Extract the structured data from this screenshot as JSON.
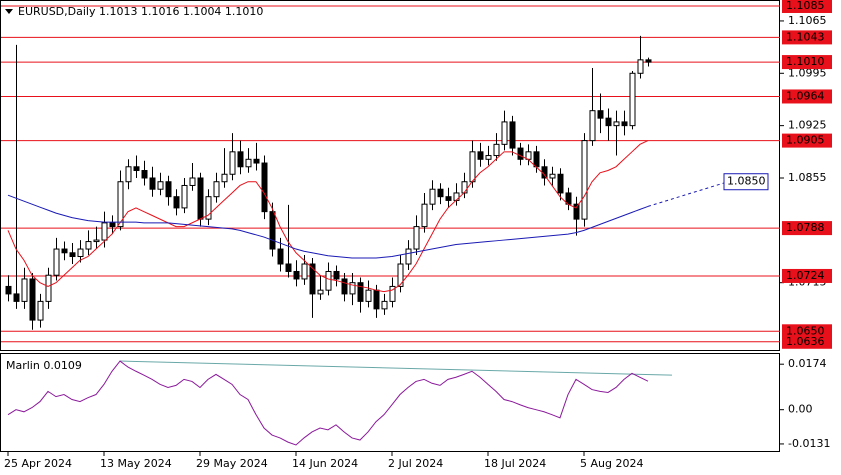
{
  "chart_data": {
    "type": "candlestick",
    "title": "EURUSD,Daily  1.1013 1.1016 1.1004 1.1010",
    "categories": [
      "25 Apr 2024",
      null,
      null,
      null,
      null,
      null,
      null,
      null,
      null,
      null,
      null,
      null,
      "13 May 2024",
      null,
      null,
      null,
      null,
      null,
      null,
      null,
      null,
      null,
      null,
      null,
      "29 May 2024",
      null,
      null,
      null,
      null,
      null,
      null,
      null,
      null,
      null,
      null,
      null,
      "14 Jun 2024",
      null,
      null,
      null,
      null,
      null,
      null,
      null,
      null,
      null,
      null,
      null,
      "2 Jul 2024",
      null,
      null,
      null,
      null,
      null,
      null,
      null,
      null,
      null,
      null,
      null,
      "18 Jul 2024",
      null,
      null,
      null,
      null,
      null,
      null,
      null,
      null,
      null,
      null,
      null,
      "5 Aug 2024",
      null,
      null,
      null,
      null,
      null,
      null,
      null,
      null
    ],
    "candles": [
      [
        1.071,
        1.0725,
        1.069,
        1.07
      ],
      [
        1.07,
        1.1033,
        1.068,
        1.069
      ],
      [
        1.069,
        1.0735,
        1.068,
        1.072
      ],
      [
        1.072,
        1.0728,
        1.0652,
        1.0665
      ],
      [
        1.0665,
        1.07,
        1.0655,
        1.069
      ],
      [
        1.069,
        1.0735,
        1.068,
        1.0725
      ],
      [
        1.0725,
        1.0775,
        1.0718,
        1.076
      ],
      [
        1.076,
        1.077,
        1.0745,
        1.0755
      ],
      [
        1.0755,
        1.0768,
        1.074,
        1.075
      ],
      [
        1.075,
        1.0772,
        1.0742,
        1.076
      ],
      [
        1.076,
        1.0785,
        1.0752,
        1.077
      ],
      [
        1.077,
        1.079,
        1.076,
        1.0772
      ],
      [
        1.0772,
        1.081,
        1.0762,
        1.0795
      ],
      [
        1.0795,
        1.0805,
        1.078,
        1.079
      ],
      [
        1.079,
        1.0865,
        1.0785,
        1.085
      ],
      [
        1.085,
        1.088,
        1.084,
        1.087
      ],
      [
        1.087,
        1.0885,
        1.0855,
        1.0865
      ],
      [
        1.0865,
        1.0878,
        1.0845,
        1.0855
      ],
      [
        1.0855,
        1.087,
        1.083,
        1.084
      ],
      [
        1.084,
        1.0862,
        1.0832,
        1.085
      ],
      [
        1.085,
        1.0858,
        1.0818,
        1.083
      ],
      [
        1.083,
        1.084,
        1.0805,
        1.0815
      ],
      [
        1.0815,
        1.0855,
        1.0808,
        1.0845
      ],
      [
        1.0845,
        1.0875,
        1.0838,
        1.0855
      ],
      [
        1.0855,
        1.0862,
        1.079,
        1.08
      ],
      [
        1.08,
        1.084,
        1.0792,
        1.083
      ],
      [
        1.083,
        1.0862,
        1.0822,
        1.085
      ],
      [
        1.085,
        1.0895,
        1.0842,
        1.086
      ],
      [
        1.086,
        1.0915,
        1.0852,
        1.089
      ],
      [
        1.089,
        1.0905,
        1.086,
        1.087
      ],
      [
        1.087,
        1.0895,
        1.0862,
        1.088
      ],
      [
        1.088,
        1.0902,
        1.0865,
        1.0875
      ],
      [
        1.0875,
        1.0885,
        1.08,
        1.081
      ],
      [
        1.081,
        1.0822,
        1.075,
        1.076
      ],
      [
        1.076,
        1.0775,
        1.073,
        1.074
      ],
      [
        1.074,
        1.0819,
        1.0722,
        1.073
      ],
      [
        1.073,
        1.0745,
        1.071,
        1.072
      ],
      [
        1.072,
        1.0752,
        1.0712,
        1.074
      ],
      [
        1.074,
        1.0748,
        1.0668,
        1.07
      ],
      [
        1.07,
        1.0725,
        1.0692,
        1.0705
      ],
      [
        1.0705,
        1.0742,
        1.0698,
        1.073
      ],
      [
        1.073,
        1.0738,
        1.071,
        1.072
      ],
      [
        1.072,
        1.0728,
        1.069,
        1.07
      ],
      [
        1.07,
        1.0728,
        1.0685,
        1.0715
      ],
      [
        1.0715,
        1.0722,
        1.0675,
        1.069
      ],
      [
        1.069,
        1.0718,
        1.0682,
        1.0705
      ],
      [
        1.0705,
        1.0712,
        1.0668,
        1.068
      ],
      [
        1.068,
        1.07,
        1.0672,
        1.069
      ],
      [
        1.069,
        1.0722,
        1.0682,
        1.071
      ],
      [
        1.071,
        1.0752,
        1.0702,
        1.074
      ],
      [
        1.074,
        1.0772,
        1.0732,
        1.076
      ],
      [
        1.076,
        1.0805,
        1.0752,
        1.079
      ],
      [
        1.079,
        1.0835,
        1.0782,
        1.082
      ],
      [
        1.082,
        1.0852,
        1.0812,
        1.084
      ],
      [
        1.084,
        1.0848,
        1.082,
        1.083
      ],
      [
        1.083,
        1.0842,
        1.0815,
        1.0825
      ],
      [
        1.0825,
        1.0848,
        1.0818,
        1.0835
      ],
      [
        1.0835,
        1.0862,
        1.0828,
        1.085
      ],
      [
        1.085,
        1.0905,
        1.0842,
        1.089
      ],
      [
        1.089,
        1.0902,
        1.087,
        1.088
      ],
      [
        1.088,
        1.0898,
        1.0872,
        1.0885
      ],
      [
        1.0885,
        1.0915,
        1.0878,
        1.09
      ],
      [
        1.09,
        1.0945,
        1.0892,
        1.093
      ],
      [
        1.093,
        1.0938,
        1.0885,
        1.0895
      ],
      [
        1.0895,
        1.0902,
        1.0872,
        1.088
      ],
      [
        1.088,
        1.09,
        1.0872,
        1.089
      ],
      [
        1.089,
        1.0898,
        1.0862,
        1.087
      ],
      [
        1.087,
        1.088,
        1.0845,
        1.0855
      ],
      [
        1.0855,
        1.087,
        1.0845,
        1.086
      ],
      [
        1.086,
        1.0868,
        1.0825,
        1.0835
      ],
      [
        1.0835,
        1.0842,
        1.0812,
        1.082
      ],
      [
        1.082,
        1.083,
        1.0778,
        1.08
      ],
      [
        1.08,
        1.0915,
        1.079,
        1.0905
      ],
      [
        1.0905,
        1.1002,
        1.0898,
        1.0945
      ],
      [
        1.0945,
        1.0968,
        1.0915,
        1.0935
      ],
      [
        1.0935,
        1.0948,
        1.0905,
        1.0925
      ],
      [
        1.0925,
        1.0945,
        1.0885,
        1.093
      ],
      [
        1.093,
        1.0945,
        1.0912,
        1.0925
      ],
      [
        1.0925,
        1.0998,
        1.092,
        1.0995
      ],
      [
        1.0995,
        1.1045,
        1.0988,
        1.1013
      ],
      [
        1.1013,
        1.1016,
        1.1004,
        1.101
      ]
    ],
    "up_color": "#ffffff",
    "down_color": "#000000",
    "series": [
      {
        "name": null,
        "color": "#e8101a",
        "values": [
          1.0785,
          1.076,
          1.0745,
          1.0725,
          1.0715,
          1.071,
          1.0715,
          1.0725,
          1.0735,
          1.0745,
          1.075,
          1.076,
          1.077,
          1.078,
          1.0795,
          1.081,
          1.0815,
          1.081,
          1.0805,
          1.08,
          1.0795,
          1.079,
          1.079,
          1.0795,
          1.08,
          1.0805,
          1.0815,
          1.0825,
          1.0835,
          1.0845,
          1.085,
          1.085,
          1.0835,
          1.0815,
          1.079,
          1.077,
          1.0755,
          1.0745,
          1.0735,
          1.0725,
          1.072,
          1.0718,
          1.0715,
          1.0712,
          1.071,
          1.0708,
          1.0705,
          1.0703,
          1.0705,
          1.0712,
          1.0725,
          1.074,
          1.076,
          1.078,
          1.08,
          1.0815,
          1.0825,
          1.0835,
          1.085,
          1.0862,
          1.087,
          1.088,
          1.089,
          1.089,
          1.0885,
          1.088,
          1.087,
          1.086,
          1.0845,
          1.083,
          1.082,
          1.0815,
          1.083,
          1.085,
          1.0862,
          1.0865,
          1.087,
          1.088,
          1.089,
          1.09,
          1.0905
        ]
      },
      {
        "name": null,
        "color": "#1a1ab4",
        "values": [
          1.0832,
          1.0828,
          1.0824,
          1.082,
          1.0816,
          1.0812,
          1.0808,
          1.0805,
          1.0802,
          1.08,
          1.0798,
          1.0797,
          1.0796,
          1.0796,
          1.0796,
          1.0796,
          1.0796,
          1.0795,
          1.0795,
          1.0795,
          1.0795,
          1.0794,
          1.0793,
          1.0792,
          1.0791,
          1.079,
          1.0789,
          1.0788,
          1.0787,
          1.0785,
          1.0782,
          1.0779,
          1.0776,
          1.0772,
          1.0768,
          1.0764,
          1.076,
          1.0757,
          1.0755,
          1.0753,
          1.0751,
          1.075,
          1.0749,
          1.0748,
          1.0748,
          1.0748,
          1.0748,
          1.0749,
          1.075,
          1.0752,
          1.0754,
          1.0756,
          1.0758,
          1.076,
          1.0762,
          1.0764,
          1.0766,
          1.0767,
          1.0768,
          1.0769,
          1.077,
          1.0771,
          1.0772,
          1.0773,
          1.0774,
          1.0775,
          1.0776,
          1.0777,
          1.0778,
          1.0779,
          1.078,
          1.0782,
          1.0785,
          1.0789,
          1.0793,
          1.0797,
          1.0801,
          1.0805,
          1.0809,
          1.0813,
          1.0817
        ]
      }
    ],
    "forecast": {
      "value": 1.085,
      "label": "1.0850"
    },
    "ylim": [
      1.0625,
      1.1093
    ],
    "yticks": [
      {
        "value": 1.1065,
        "label": "1.1065"
      },
      {
        "value": 1.0995,
        "label": "1.0995"
      },
      {
        "value": 1.0925,
        "label": "1.0925"
      },
      {
        "value": 1.0855,
        "label": "1.0855"
      },
      {
        "value": 1.0715,
        "label": "1.0715"
      }
    ],
    "levels": [
      {
        "value": 1.1085,
        "label": "1.1085"
      },
      {
        "value": 1.1043,
        "label": "1.1043"
      },
      {
        "value": 1.101,
        "label": "1.1010"
      },
      {
        "value": 1.0964,
        "label": "1.0964"
      },
      {
        "value": 1.0905,
        "label": "1.0905"
      },
      {
        "value": 1.0788,
        "label": "1.0788"
      },
      {
        "value": 1.0724,
        "label": "1.0724"
      },
      {
        "value": 1.065,
        "label": "1.0650"
      },
      {
        "value": 1.0636,
        "label": "1.0636"
      }
    ],
    "level_color": "#e8101a",
    "indicator": {
      "title": "Marlin 0.0109",
      "color": "#8b1a9b",
      "signal_color": "#6aa8a8",
      "values": [
        -0.0019,
        0.0,
        -0.0008,
        0.0008,
        0.0031,
        0.007,
        0.005,
        0.0058,
        0.0039,
        0.0031,
        0.0046,
        0.0058,
        0.0097,
        0.0147,
        0.0186,
        0.0163,
        0.0147,
        0.0132,
        0.0116,
        0.0097,
        0.0085,
        0.0093,
        0.0116,
        0.0108,
        0.0085,
        0.0116,
        0.0135,
        0.0116,
        0.0097,
        0.0058,
        0.0039,
        -0.0019,
        -0.007,
        -0.0097,
        -0.0108,
        -0.0124,
        -0.0135,
        -0.0108,
        -0.0085,
        -0.007,
        -0.0077,
        -0.0058,
        -0.0085,
        -0.0108,
        -0.0116,
        -0.0085,
        -0.0046,
        -0.0019,
        0.0019,
        0.0058,
        0.0085,
        0.0108,
        0.0116,
        0.0101,
        0.0093,
        0.0116,
        0.0124,
        0.0135,
        0.0147,
        0.0124,
        0.0097,
        0.007,
        0.0039,
        0.0031,
        0.0019,
        0.0008,
        0.0,
        -0.0008,
        -0.0019,
        -0.0031,
        0.0058,
        0.0116,
        0.0097,
        0.0077,
        0.007,
        0.0066,
        0.0085,
        0.0116,
        0.0139,
        0.0124,
        0.0109
      ],
      "signal_x": [
        14,
        83
      ],
      "signal_values": [
        0.0186,
        0.0132
      ],
      "ylim": [
        -0.0158,
        0.0213
      ],
      "yticks": [
        0.0174,
        {
          "value": 0,
          "label": "0.00"
        },
        -0.0131
      ]
    }
  }
}
